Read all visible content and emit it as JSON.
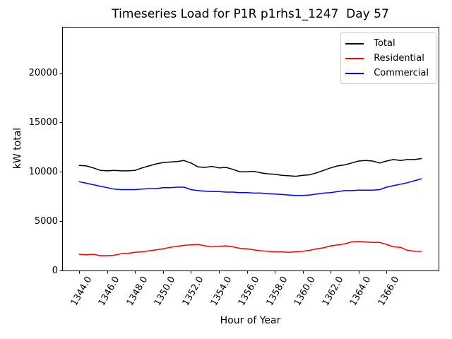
{
  "chart_data": {
    "type": "line",
    "title": "Timeseries Load for P1R p1rhs1_1247  Day 57",
    "xlabel": "Hour of Year",
    "ylabel": "kW total",
    "grid": false,
    "legend_position": "upper-right",
    "xlim": [
      1342.775,
      1369.725
    ],
    "ylim": [
      0,
      24700
    ],
    "xticks": [
      1344,
      1346,
      1348,
      1350,
      1352,
      1354,
      1356,
      1358,
      1360,
      1362,
      1364,
      1366
    ],
    "xtick_labels": [
      "1344.0",
      "1346.0",
      "1348.0",
      "1350.0",
      "1352.0",
      "1354.0",
      "1356.0",
      "1358.0",
      "1360.0",
      "1362.0",
      "1364.0",
      "1366.0"
    ],
    "yticks": [
      0,
      5000,
      10000,
      15000,
      20000
    ],
    "ytick_labels": [
      "0",
      "5000",
      "10000",
      "15000",
      "20000"
    ],
    "x": [
      1344.0,
      1344.5,
      1345.0,
      1345.5,
      1346.0,
      1346.5,
      1347.0,
      1347.5,
      1348.0,
      1348.5,
      1349.0,
      1349.5,
      1350.0,
      1350.5,
      1351.0,
      1351.5,
      1352.0,
      1352.5,
      1353.0,
      1353.5,
      1354.0,
      1354.5,
      1355.0,
      1355.5,
      1356.0,
      1356.5,
      1357.0,
      1357.5,
      1358.0,
      1358.5,
      1359.0,
      1359.5,
      1360.0,
      1360.5,
      1361.0,
      1361.5,
      1362.0,
      1362.5,
      1363.0,
      1363.5,
      1364.0,
      1364.5,
      1365.0,
      1365.5,
      1366.0,
      1366.5,
      1367.0,
      1367.5,
      1368.0,
      1368.5
    ],
    "series": [
      {
        "name": "Total",
        "color": "#000000",
        "values": [
          10650,
          10600,
          10400,
          10150,
          10100,
          10150,
          10100,
          10100,
          10150,
          10400,
          10600,
          10800,
          10950,
          11000,
          11050,
          11150,
          10900,
          10500,
          10450,
          10550,
          10400,
          10450,
          10250,
          10000,
          10000,
          10050,
          9900,
          9800,
          9750,
          9650,
          9600,
          9550,
          9650,
          9700,
          9900,
          10150,
          10400,
          10600,
          10700,
          10900,
          11100,
          11150,
          11100,
          10900,
          11100,
          11250,
          11150,
          11250,
          11250,
          11350
        ]
      },
      {
        "name": "Residential",
        "color": "#ff0000",
        "values": [
          1650,
          1600,
          1650,
          1500,
          1500,
          1550,
          1700,
          1750,
          1850,
          1900,
          2000,
          2100,
          2200,
          2350,
          2450,
          2550,
          2600,
          2650,
          2500,
          2400,
          2450,
          2500,
          2400,
          2250,
          2200,
          2100,
          2000,
          1950,
          1900,
          1900,
          1850,
          1900,
          1950,
          2050,
          2200,
          2300,
          2500,
          2600,
          2700,
          2900,
          2950,
          2900,
          2850,
          2850,
          2650,
          2400,
          2350,
          2050,
          1950,
          1950
        ]
      },
      {
        "name": "Commercial",
        "color": "#0000ff",
        "values": [
          9000,
          8850,
          8700,
          8550,
          8400,
          8250,
          8200,
          8200,
          8200,
          8250,
          8300,
          8300,
          8400,
          8400,
          8450,
          8450,
          8200,
          8100,
          8050,
          8000,
          8000,
          7950,
          7950,
          7900,
          7900,
          7850,
          7850,
          7800,
          7750,
          7700,
          7650,
          7600,
          7600,
          7650,
          7750,
          7850,
          7900,
          8000,
          8100,
          8100,
          8150,
          8150,
          8150,
          8200,
          8450,
          8600,
          8750,
          8900,
          9100,
          9300
        ]
      }
    ]
  }
}
